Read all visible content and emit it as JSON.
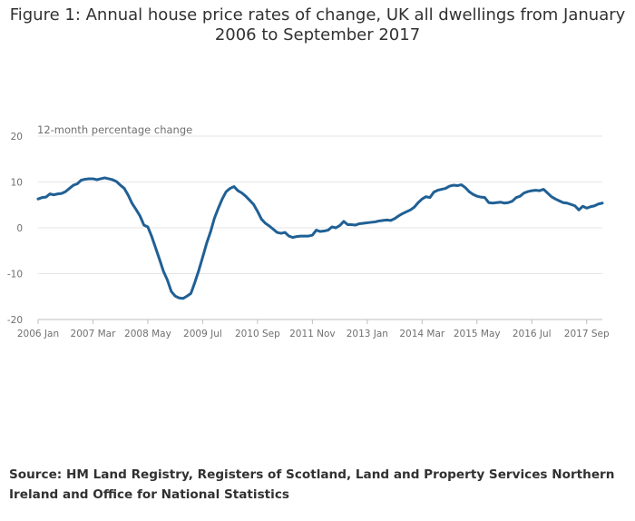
{
  "title": "Figure 1: Annual house price rates of change, UK all dwellings from January 2006 to September 2017",
  "source": "Source: HM Land Registry, Registers of Scotland, Land and Property Services Northern Ireland and Office for National Statistics",
  "colors": {
    "line": "#206095",
    "grid": "#e5e5e5",
    "axis": "#bebebe",
    "text": "#707071"
  },
  "chart_data": {
    "type": "line",
    "title": "Figure 1: Annual house price rates of change, UK all dwellings from January 2006 to September 2017",
    "ylabel": "12-month percentage change",
    "xlabel": "",
    "ylim": [
      -20,
      20
    ],
    "yticks": [
      20,
      10,
      0,
      -10,
      -20
    ],
    "xticks": [
      {
        "label": "2006 Jan",
        "index": 0
      },
      {
        "label": "2007 Mar",
        "index": 14
      },
      {
        "label": "2008 May",
        "index": 28
      },
      {
        "label": "2009 Jul",
        "index": 42
      },
      {
        "label": "2010 Sep",
        "index": 56
      },
      {
        "label": "2011 Nov",
        "index": 70
      },
      {
        "label": "2013 Jan",
        "index": 84
      },
      {
        "label": "2014 Mar",
        "index": 98
      },
      {
        "label": "2015 May",
        "index": 112
      },
      {
        "label": "2016 Jul",
        "index": 126
      },
      {
        "label": "2017 Sep",
        "index": 140
      }
    ],
    "grid": true,
    "x_start": "2006 Jan",
    "x_end": "2017 Sep",
    "series": [
      {
        "values": [
          6.3,
          6.6,
          6.7,
          7.4,
          7.2,
          7.4,
          7.5,
          7.9,
          8.6,
          9.3,
          9.6,
          10.4,
          10.6,
          10.7,
          10.7,
          10.5,
          10.7,
          10.9,
          10.7,
          10.5,
          10.1,
          9.3,
          8.6,
          7.1,
          5.3,
          4.0,
          2.6,
          0.6,
          0.2,
          -1.9,
          -4.4,
          -6.9,
          -9.5,
          -11.4,
          -13.9,
          -14.9,
          -15.3,
          -15.4,
          -14.9,
          -14.3,
          -11.9,
          -9.3,
          -6.4,
          -3.4,
          -0.9,
          2.1,
          4.3,
          6.3,
          7.9,
          8.6,
          9.0,
          8.1,
          7.6,
          6.9,
          6.0,
          5.1,
          3.6,
          1.9,
          1.0,
          0.4,
          -0.3,
          -1.0,
          -1.2,
          -1.0,
          -1.8,
          -2.1,
          -1.9,
          -1.8,
          -1.8,
          -1.8,
          -1.6,
          -0.5,
          -0.8,
          -0.7,
          -0.5,
          0.2,
          0.0,
          0.5,
          1.4,
          0.7,
          0.7,
          0.6,
          0.9,
          1.0,
          1.1,
          1.2,
          1.3,
          1.5,
          1.6,
          1.7,
          1.6,
          2.0,
          2.6,
          3.1,
          3.5,
          3.9,
          4.5,
          5.5,
          6.3,
          6.8,
          6.6,
          7.8,
          8.2,
          8.4,
          8.6,
          9.1,
          9.3,
          9.2,
          9.4,
          8.8,
          7.9,
          7.3,
          6.9,
          6.7,
          6.6,
          5.5,
          5.4,
          5.5,
          5.6,
          5.4,
          5.5,
          5.8,
          6.6,
          6.9,
          7.6,
          7.9,
          8.1,
          8.2,
          8.1,
          8.4,
          7.6,
          6.8,
          6.3,
          5.9,
          5.5,
          5.4,
          5.1,
          4.8,
          3.9,
          4.7,
          4.3,
          4.6,
          4.8,
          5.2,
          5.4
        ]
      }
    ]
  }
}
